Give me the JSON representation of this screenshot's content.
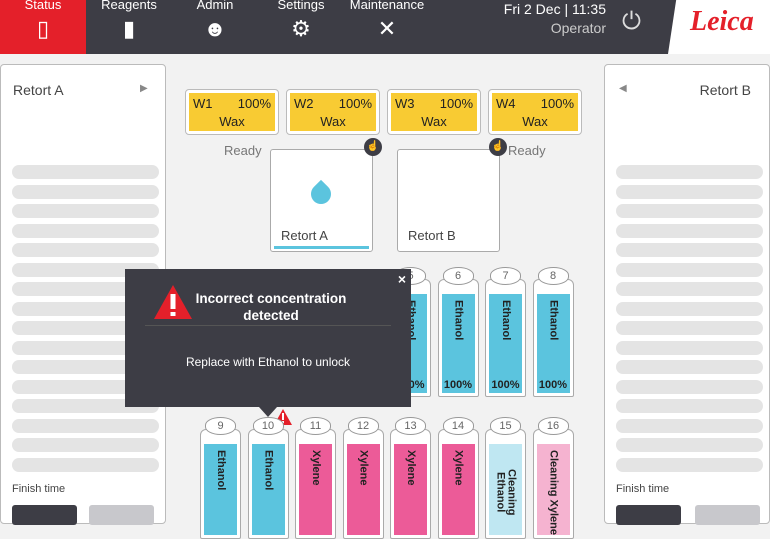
{
  "nav": [
    {
      "label": "Status",
      "icon": "status-icon",
      "active": true
    },
    {
      "label": "Reagents",
      "icon": "reagents-icon"
    },
    {
      "label": "Admin",
      "icon": "admin-icon"
    },
    {
      "label": "Settings",
      "icon": "gear-icon"
    },
    {
      "label": "Maintenance",
      "icon": "tools-icon"
    }
  ],
  "header": {
    "datetime": "Fri 2 Dec | 11:35",
    "user": "Operator",
    "logo": "Leica"
  },
  "left_panel": {
    "title": "Retort A",
    "finish_label": "Finish time"
  },
  "right_panel": {
    "title": "Retort B",
    "finish_label": "Finish time"
  },
  "wax": [
    {
      "id": "W1",
      "pct": "100%",
      "name": "Wax"
    },
    {
      "id": "W2",
      "pct": "100%",
      "name": "Wax"
    },
    {
      "id": "W3",
      "pct": "100%",
      "name": "Wax"
    },
    {
      "id": "W4",
      "pct": "100%",
      "name": "Wax"
    }
  ],
  "retorts": [
    {
      "name": "Retort A",
      "status": "Ready"
    },
    {
      "name": "Retort B",
      "status": "Ready"
    }
  ],
  "bottles_top": [
    {
      "n": "5",
      "name": "Ethanol",
      "pct": "100%"
    },
    {
      "n": "6",
      "name": "Ethanol",
      "pct": "100%"
    },
    {
      "n": "7",
      "name": "Ethanol",
      "pct": "100%"
    },
    {
      "n": "8",
      "name": "Ethanol",
      "pct": "100%"
    }
  ],
  "bottles_bottom": [
    {
      "n": "9",
      "name": "Ethanol"
    },
    {
      "n": "10",
      "name": "Ethanol",
      "warning": true
    },
    {
      "n": "11",
      "name": "Xylene"
    },
    {
      "n": "12",
      "name": "Xylene"
    },
    {
      "n": "13",
      "name": "Xylene"
    },
    {
      "n": "14",
      "name": "Xylene"
    },
    {
      "n": "15",
      "name": "Cleaning Ethanol"
    },
    {
      "n": "16",
      "name": "Cleaning Xylene"
    }
  ],
  "colors": {
    "Ethanol": "#5bc4de",
    "Xylene": "#ec5b98",
    "Cleaning Ethanol": "#bfe7f2",
    "Cleaning Xylene": "#f5b3d0",
    "accent": "#e4202a",
    "wax": "#f8cb33"
  },
  "popup": {
    "title": "Incorrect concentration detected",
    "message": "Replace with Ethanol to unlock",
    "close": "×"
  }
}
